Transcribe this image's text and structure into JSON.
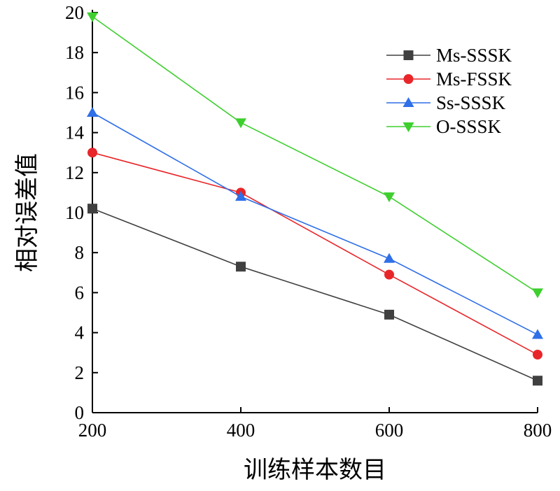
{
  "chart_data": {
    "type": "line",
    "title": "",
    "xlabel": "训练样本数目",
    "ylabel": "相对误差值",
    "x": [
      200,
      400,
      600,
      800
    ],
    "xticks": [
      200,
      400,
      600,
      800
    ],
    "xlim": [
      200,
      800
    ],
    "yticks": [
      0,
      2,
      4,
      6,
      8,
      10,
      12,
      14,
      16,
      18,
      20
    ],
    "ylim": [
      0,
      20
    ],
    "grid": false,
    "legend_position": "top-right",
    "series": [
      {
        "name": "Ms-SSSK",
        "color": "#404040",
        "marker": "square",
        "values": [
          10.2,
          7.3,
          4.9,
          1.6
        ]
      },
      {
        "name": "Ms-FSSK",
        "color": "#e8262a",
        "marker": "circle",
        "values": [
          13.0,
          11.0,
          6.9,
          2.9
        ]
      },
      {
        "name": "Ss-SSSK",
        "color": "#2f6fe8",
        "marker": "triangle-up",
        "values": [
          15.0,
          10.8,
          7.7,
          3.9
        ]
      },
      {
        "name": "O-SSSK",
        "color": "#3ecf2f",
        "marker": "triangle-down",
        "values": [
          19.8,
          14.5,
          10.8,
          6.0
        ]
      }
    ]
  }
}
